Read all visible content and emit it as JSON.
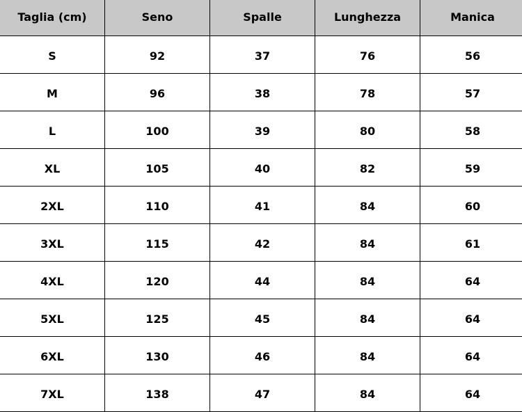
{
  "table": {
    "headers": [
      "Taglia (cm)",
      "Seno",
      "Spalle",
      "Lunghezza",
      "Manica"
    ],
    "header_bg": "#c8c8c8",
    "rows": [
      [
        "S",
        "92",
        "37",
        "76",
        "56"
      ],
      [
        "M",
        "96",
        "38",
        "78",
        "57"
      ],
      [
        "L",
        "100",
        "39",
        "80",
        "58"
      ],
      [
        "XL",
        "105",
        "40",
        "82",
        "59"
      ],
      [
        "2XL",
        "110",
        "41",
        "84",
        "60"
      ],
      [
        "3XL",
        "115",
        "42",
        "84",
        "61"
      ],
      [
        "4XL",
        "120",
        "44",
        "84",
        "64"
      ],
      [
        "5XL",
        "125",
        "45",
        "84",
        "64"
      ],
      [
        "6XL",
        "130",
        "46",
        "84",
        "64"
      ],
      [
        "7XL",
        "138",
        "47",
        "84",
        "64"
      ]
    ]
  }
}
